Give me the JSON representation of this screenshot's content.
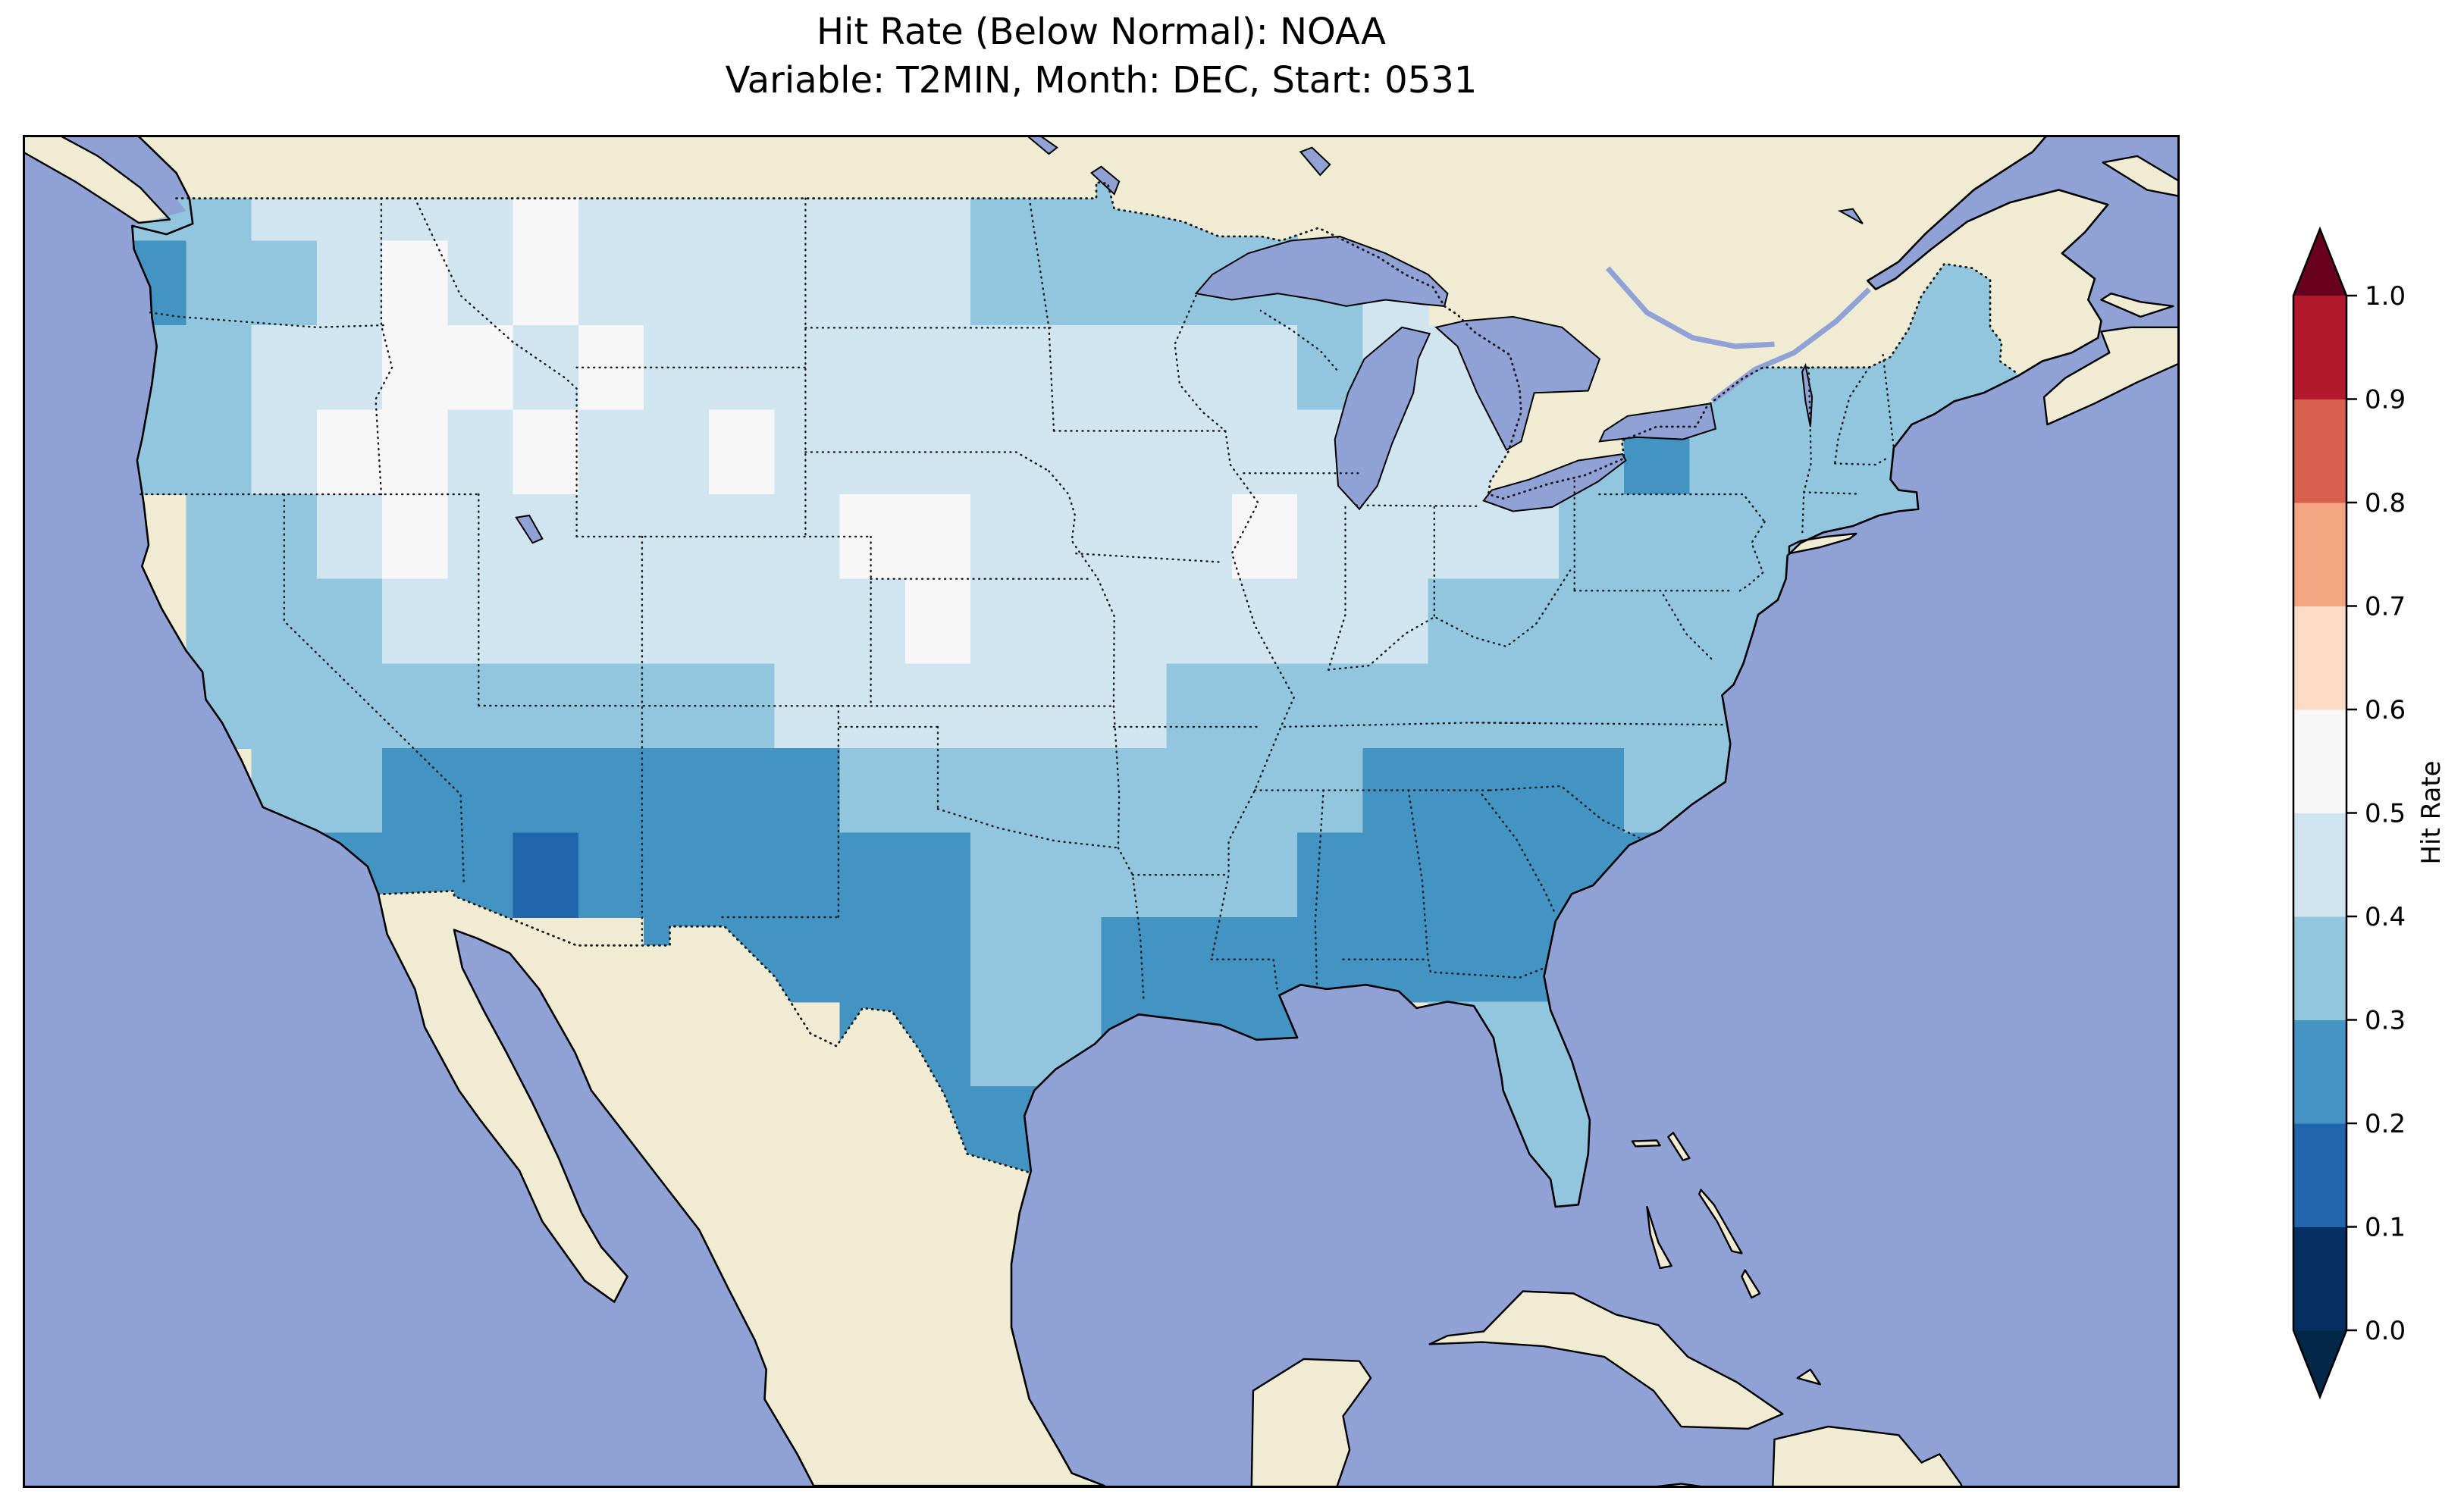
{
  "title": {
    "line1": "Hit Rate (Below Normal): NOAA",
    "line2": "Variable: T2MIN, Month: DEC, Start: 0531"
  },
  "colorbar": {
    "label": "Hit Rate",
    "ticks_display": [
      "1.0",
      "0.9",
      "0.8",
      "0.7",
      "0.6",
      "0.5",
      "0.4",
      "0.3",
      "0.2",
      "0.1",
      "0.0"
    ]
  },
  "colors": {
    "ocean": "#90a1d5",
    "land": "#f0ecd4",
    "coastline": "#000000",
    "border_dots": "#1a1a1a",
    "frame": "#000000",
    "title_text": "#000000"
  },
  "chart_data": {
    "type": "heatmap",
    "title": "Hit Rate (Below Normal): NOAA",
    "subtitle": "Variable: T2MIN, Month: DEC, Start: 0531",
    "source": "NOAA",
    "variable": "T2MIN",
    "month": "DEC",
    "start": "0531",
    "colorbar": {
      "label": "Hit Rate",
      "ticks": [
        0.0,
        0.1,
        0.2,
        0.3,
        0.4,
        0.5,
        0.6,
        0.7,
        0.8,
        0.9,
        1.0
      ],
      "extend": "both",
      "colors": [
        "#053061",
        "#2166ac",
        "#4393c3",
        "#92c5de",
        "#d1e5f0",
        "#f7f7f7",
        "#fddbc7",
        "#f4a582",
        "#d6604d",
        "#b2182b"
      ],
      "under_color": "#032747",
      "over_color": "#67001f"
    },
    "grid": {
      "description": "Estimated hit-rate values on a 2-degree grid over the contiguous US; rows north-to-south (lat 50 to 24), columns west-to-east (lon -125 to -67); null = no data",
      "lat_start": 50,
      "lon_start": -125,
      "cell_deg": 2,
      "values": [
        [
          0.35,
          0.35,
          0.45,
          0.45,
          0.45,
          0.45,
          0.55,
          0.45,
          0.45,
          0.45,
          0.45,
          0.45,
          0.45,
          0.35,
          0.35,
          0.35,
          0.35,
          0.35,
          null,
          null,
          null,
          null,
          null,
          null,
          null,
          null,
          null,
          null,
          null
        ],
        [
          0.25,
          0.35,
          0.35,
          0.45,
          0.55,
          0.45,
          0.55,
          0.45,
          0.45,
          0.45,
          0.45,
          0.45,
          0.45,
          0.35,
          0.35,
          0.35,
          0.35,
          0.35,
          0.35,
          0.45,
          null,
          null,
          null,
          null,
          null,
          null,
          null,
          0.35,
          0.35
        ],
        [
          0.35,
          0.35,
          0.45,
          0.45,
          0.55,
          0.55,
          0.45,
          0.55,
          0.45,
          0.45,
          0.45,
          0.45,
          0.45,
          0.45,
          0.45,
          0.45,
          0.45,
          0.45,
          0.35,
          0.45,
          0.45,
          null,
          null,
          null,
          0.35,
          0.35,
          0.35,
          0.35,
          0.35
        ],
        [
          0.35,
          0.35,
          0.45,
          0.55,
          0.55,
          0.45,
          0.55,
          0.45,
          0.45,
          0.55,
          0.45,
          0.45,
          0.45,
          0.45,
          0.45,
          0.45,
          0.45,
          0.45,
          0.45,
          0.45,
          0.45,
          0.45,
          0.35,
          0.25,
          0.35,
          0.35,
          0.35,
          0.35,
          null
        ],
        [
          null,
          0.35,
          0.35,
          0.45,
          0.55,
          0.45,
          0.45,
          0.45,
          0.45,
          0.45,
          0.45,
          0.55,
          0.55,
          0.45,
          0.45,
          0.45,
          0.45,
          0.55,
          0.45,
          0.45,
          0.45,
          0.45,
          0.35,
          0.35,
          0.35,
          0.35,
          0.35,
          0.35,
          null
        ],
        [
          null,
          0.35,
          0.35,
          0.35,
          0.45,
          0.45,
          0.45,
          0.45,
          0.45,
          0.45,
          0.45,
          0.45,
          0.55,
          0.45,
          0.45,
          0.45,
          0.45,
          0.45,
          0.45,
          0.45,
          0.35,
          0.35,
          0.35,
          0.35,
          0.35,
          0.35,
          null,
          null,
          null
        ],
        [
          null,
          0.35,
          0.35,
          0.35,
          0.35,
          0.35,
          0.35,
          0.35,
          0.35,
          0.35,
          0.45,
          0.45,
          0.45,
          0.45,
          0.45,
          0.45,
          0.35,
          0.35,
          0.35,
          0.35,
          0.35,
          0.35,
          0.35,
          0.35,
          0.35,
          null,
          null,
          null,
          null
        ],
        [
          null,
          null,
          0.35,
          0.35,
          0.25,
          0.25,
          0.25,
          0.25,
          0.25,
          0.25,
          0.25,
          0.35,
          0.35,
          0.35,
          0.35,
          0.35,
          0.35,
          0.35,
          0.35,
          0.25,
          0.25,
          0.25,
          0.25,
          0.35,
          0.35,
          null,
          null,
          null,
          null
        ],
        [
          null,
          null,
          null,
          0.25,
          0.25,
          0.25,
          0.15,
          0.25,
          0.25,
          0.25,
          0.25,
          0.25,
          0.25,
          0.35,
          0.35,
          0.35,
          0.35,
          0.35,
          0.25,
          0.25,
          0.25,
          0.25,
          0.25,
          0.25,
          null,
          null,
          null,
          null,
          null
        ],
        [
          null,
          null,
          null,
          null,
          null,
          null,
          null,
          null,
          0.25,
          0.25,
          0.25,
          0.25,
          0.25,
          0.35,
          0.35,
          0.25,
          0.25,
          0.25,
          0.25,
          0.25,
          0.25,
          0.25,
          0.35,
          null,
          null,
          null,
          null,
          null,
          null
        ],
        [
          null,
          null,
          null,
          null,
          null,
          null,
          null,
          null,
          null,
          null,
          null,
          0.25,
          0.25,
          0.35,
          0.35,
          0.25,
          0.25,
          0.25,
          null,
          null,
          0.35,
          0.35,
          0.35,
          null,
          null,
          null,
          null,
          null,
          null
        ],
        [
          null,
          null,
          null,
          null,
          null,
          null,
          null,
          null,
          null,
          null,
          null,
          null,
          0.25,
          0.25,
          null,
          null,
          null,
          null,
          null,
          null,
          null,
          0.35,
          0.35,
          null,
          null,
          null,
          null,
          null,
          null
        ],
        [
          null,
          null,
          null,
          null,
          null,
          null,
          null,
          null,
          null,
          null,
          null,
          null,
          null,
          null,
          null,
          null,
          null,
          null,
          null,
          null,
          null,
          0.35,
          0.35,
          null,
          null,
          null,
          null,
          null,
          null
        ]
      ]
    }
  }
}
